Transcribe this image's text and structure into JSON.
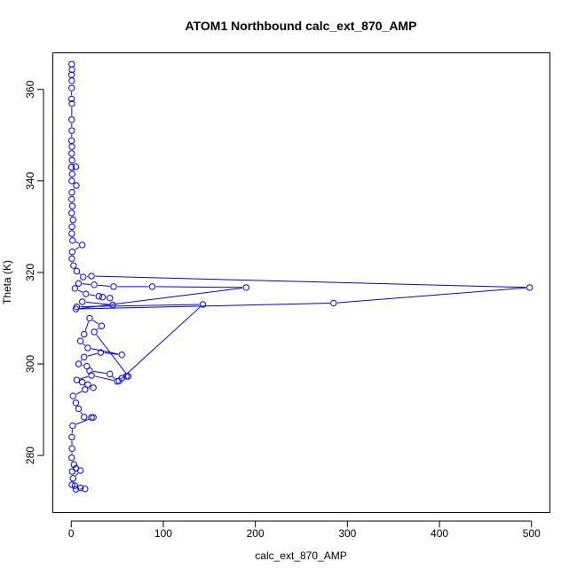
{
  "chart_data": {
    "type": "scatter",
    "title": "ATOM1 Northbound calc_ext_870_AMP",
    "xlabel": "calc_ext_870_AMP",
    "ylabel": "Theta (K)",
    "xlim": [
      -20,
      520
    ],
    "ylim": [
      267.5,
      368
    ],
    "x_ticks": [
      0,
      100,
      200,
      300,
      400,
      500
    ],
    "y_ticks": [
      280,
      300,
      320,
      340,
      360
    ],
    "grid": false,
    "style": "points connected by lines (type=b)",
    "color": "#0000ff",
    "points": [
      {
        "x": 0.5,
        "y": 365.5
      },
      {
        "x": 0.8,
        "y": 364.3
      },
      {
        "x": 0.4,
        "y": 363.2
      },
      {
        "x": 0.6,
        "y": 361.9
      },
      {
        "x": 0.5,
        "y": 360.3
      },
      {
        "x": 0.3,
        "y": 357.9
      },
      {
        "x": 0.7,
        "y": 356.9
      },
      {
        "x": 0.5,
        "y": 353.4
      },
      {
        "x": 0.6,
        "y": 351.0
      },
      {
        "x": 0.4,
        "y": 348.8
      },
      {
        "x": 0.8,
        "y": 347.5
      },
      {
        "x": 0.5,
        "y": 346.0
      },
      {
        "x": 0.9,
        "y": 344.5
      },
      {
        "x": 0.3,
        "y": 343.0
      },
      {
        "x": 5.0,
        "y": 343.1
      },
      {
        "x": 1.0,
        "y": 341.5
      },
      {
        "x": 0.6,
        "y": 340.0
      },
      {
        "x": 5.5,
        "y": 339.0
      },
      {
        "x": 0.7,
        "y": 337.5
      },
      {
        "x": 0.4,
        "y": 336.0
      },
      {
        "x": 1.2,
        "y": 334.5
      },
      {
        "x": 0.5,
        "y": 333.0
      },
      {
        "x": 2.0,
        "y": 331.5
      },
      {
        "x": 0.8,
        "y": 330.0
      },
      {
        "x": 0.6,
        "y": 328.5
      },
      {
        "x": 1.5,
        "y": 327.0
      },
      {
        "x": 12.0,
        "y": 326.0
      },
      {
        "x": 1.0,
        "y": 324.5
      },
      {
        "x": 0.7,
        "y": 323.0
      },
      {
        "x": 2.5,
        "y": 321.5
      },
      {
        "x": 6.0,
        "y": 320.3
      },
      {
        "x": 13.0,
        "y": 319.0
      },
      {
        "x": 22.0,
        "y": 319.2
      },
      {
        "x": 498.0,
        "y": 316.7
      },
      {
        "x": 285.0,
        "y": 313.3
      },
      {
        "x": 5.0,
        "y": 312.0
      },
      {
        "x": 190.0,
        "y": 316.7
      },
      {
        "x": 88.0,
        "y": 316.9
      },
      {
        "x": 46.0,
        "y": 316.9
      },
      {
        "x": 25.0,
        "y": 317.3
      },
      {
        "x": 8.0,
        "y": 317.6
      },
      {
        "x": 4.0,
        "y": 316.5
      },
      {
        "x": 16.0,
        "y": 315.3
      },
      {
        "x": 30.0,
        "y": 314.8
      },
      {
        "x": 34.0,
        "y": 314.6
      },
      {
        "x": 42.0,
        "y": 314.4
      },
      {
        "x": 45.0,
        "y": 312.9
      },
      {
        "x": 12.0,
        "y": 313.6
      },
      {
        "x": 6.0,
        "y": 312.5
      },
      {
        "x": 143.0,
        "y": 313.0
      },
      {
        "x": 52.0,
        "y": 296.3
      },
      {
        "x": 55.0,
        "y": 296.9
      },
      {
        "x": 60.0,
        "y": 297.3
      },
      {
        "x": 62.0,
        "y": 297.3
      },
      {
        "x": 25.0,
        "y": 307.0
      },
      {
        "x": 33.0,
        "y": 308.3
      },
      {
        "x": 20.0,
        "y": 310.0
      },
      {
        "x": 14.0,
        "y": 306.5
      },
      {
        "x": 10.0,
        "y": 305.0
      },
      {
        "x": 18.0,
        "y": 303.5
      },
      {
        "x": 55.0,
        "y": 302.0
      },
      {
        "x": 32.0,
        "y": 302.5
      },
      {
        "x": 14.0,
        "y": 301.5
      },
      {
        "x": 8.0,
        "y": 300.0
      },
      {
        "x": 17.0,
        "y": 299.5
      },
      {
        "x": 20.0,
        "y": 298.5
      },
      {
        "x": 42.0,
        "y": 297.8
      },
      {
        "x": 50.0,
        "y": 296.2
      },
      {
        "x": 22.0,
        "y": 297.5
      },
      {
        "x": 6.0,
        "y": 296.5
      },
      {
        "x": 12.0,
        "y": 296.0
      },
      {
        "x": 18.0,
        "y": 295.5
      },
      {
        "x": 24.0,
        "y": 294.8
      },
      {
        "x": 15.0,
        "y": 294.4
      },
      {
        "x": 2.0,
        "y": 293.0
      },
      {
        "x": 5.0,
        "y": 291.5
      },
      {
        "x": 8.0,
        "y": 290.2
      },
      {
        "x": 14.0,
        "y": 288.4
      },
      {
        "x": 22.0,
        "y": 288.3
      },
      {
        "x": 24.0,
        "y": 288.3
      },
      {
        "x": 1.5,
        "y": 286.5
      },
      {
        "x": 0.6,
        "y": 284.0
      },
      {
        "x": 0.9,
        "y": 281.5
      },
      {
        "x": 0.5,
        "y": 279.5
      },
      {
        "x": 3.0,
        "y": 278.0
      },
      {
        "x": 5.0,
        "y": 277.2
      },
      {
        "x": 1.0,
        "y": 276.5
      },
      {
        "x": 10.0,
        "y": 276.7
      },
      {
        "x": 2.0,
        "y": 275.0
      },
      {
        "x": 0.8,
        "y": 273.6
      },
      {
        "x": 4.0,
        "y": 273.4
      },
      {
        "x": 10.0,
        "y": 272.9
      },
      {
        "x": 15.0,
        "y": 272.7
      },
      {
        "x": 5.0,
        "y": 272.6
      }
    ]
  }
}
